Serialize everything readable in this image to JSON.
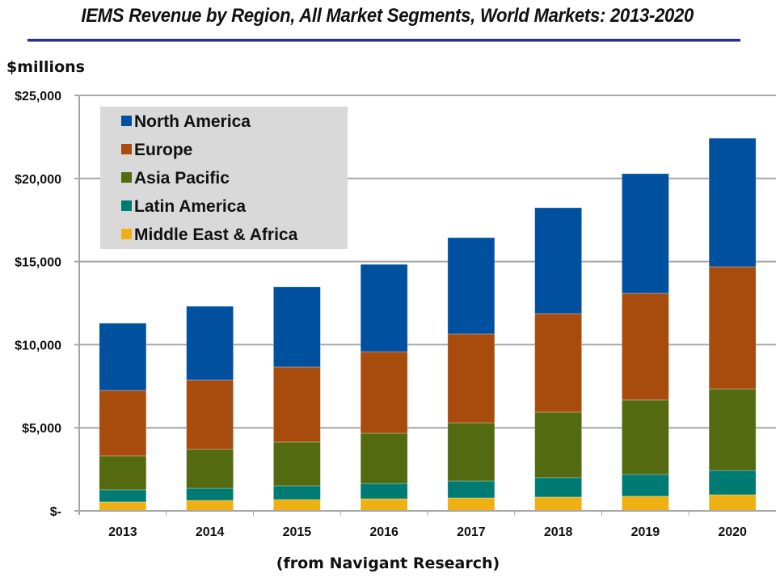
{
  "chart_data": {
    "type": "bar",
    "stacked": true,
    "title": "IEMS Revenue by Region, All Market Segments, World Markets: 2013-2020",
    "ylabel": "$millions",
    "xlabel": "",
    "source_note": "(from Navigant Research)",
    "categories": [
      "2013",
      "2014",
      "2015",
      "2016",
      "2017",
      "2018",
      "2019",
      "2020"
    ],
    "ylim": [
      0,
      25000
    ],
    "yticks": [
      0,
      5000,
      10000,
      15000,
      20000,
      25000
    ],
    "ytick_labels": [
      "$-",
      "$5,000",
      "$10,000",
      "$15,000",
      "$20,000",
      "$25,000"
    ],
    "grid": true,
    "legend_position": "top-left",
    "stack_order_bottom_to_top": [
      "Middle East & Africa",
      "Latin America",
      "Asia Pacific",
      "Europe",
      "North America"
    ],
    "series": [
      {
        "name": "North America",
        "color": "#0050a0",
        "values": [
          4040,
          4430,
          4820,
          5250,
          5790,
          6370,
          7200,
          7730
        ]
      },
      {
        "name": "Europe",
        "color": "#a84c0e",
        "values": [
          3940,
          4180,
          4520,
          4910,
          5350,
          5930,
          6420,
          7350
        ]
      },
      {
        "name": "Asia Pacific",
        "color": "#536a10",
        "values": [
          2040,
          2340,
          2630,
          3020,
          3500,
          3940,
          4480,
          4910
        ]
      },
      {
        "name": "Latin America",
        "color": "#007b73",
        "values": [
          730,
          730,
          830,
          920,
          1020,
          1170,
          1310,
          1460
        ]
      },
      {
        "name": "Middle East & Africa",
        "color": "#eeb012",
        "values": [
          540,
          630,
          680,
          730,
          780,
          830,
          880,
          970
        ]
      }
    ]
  }
}
